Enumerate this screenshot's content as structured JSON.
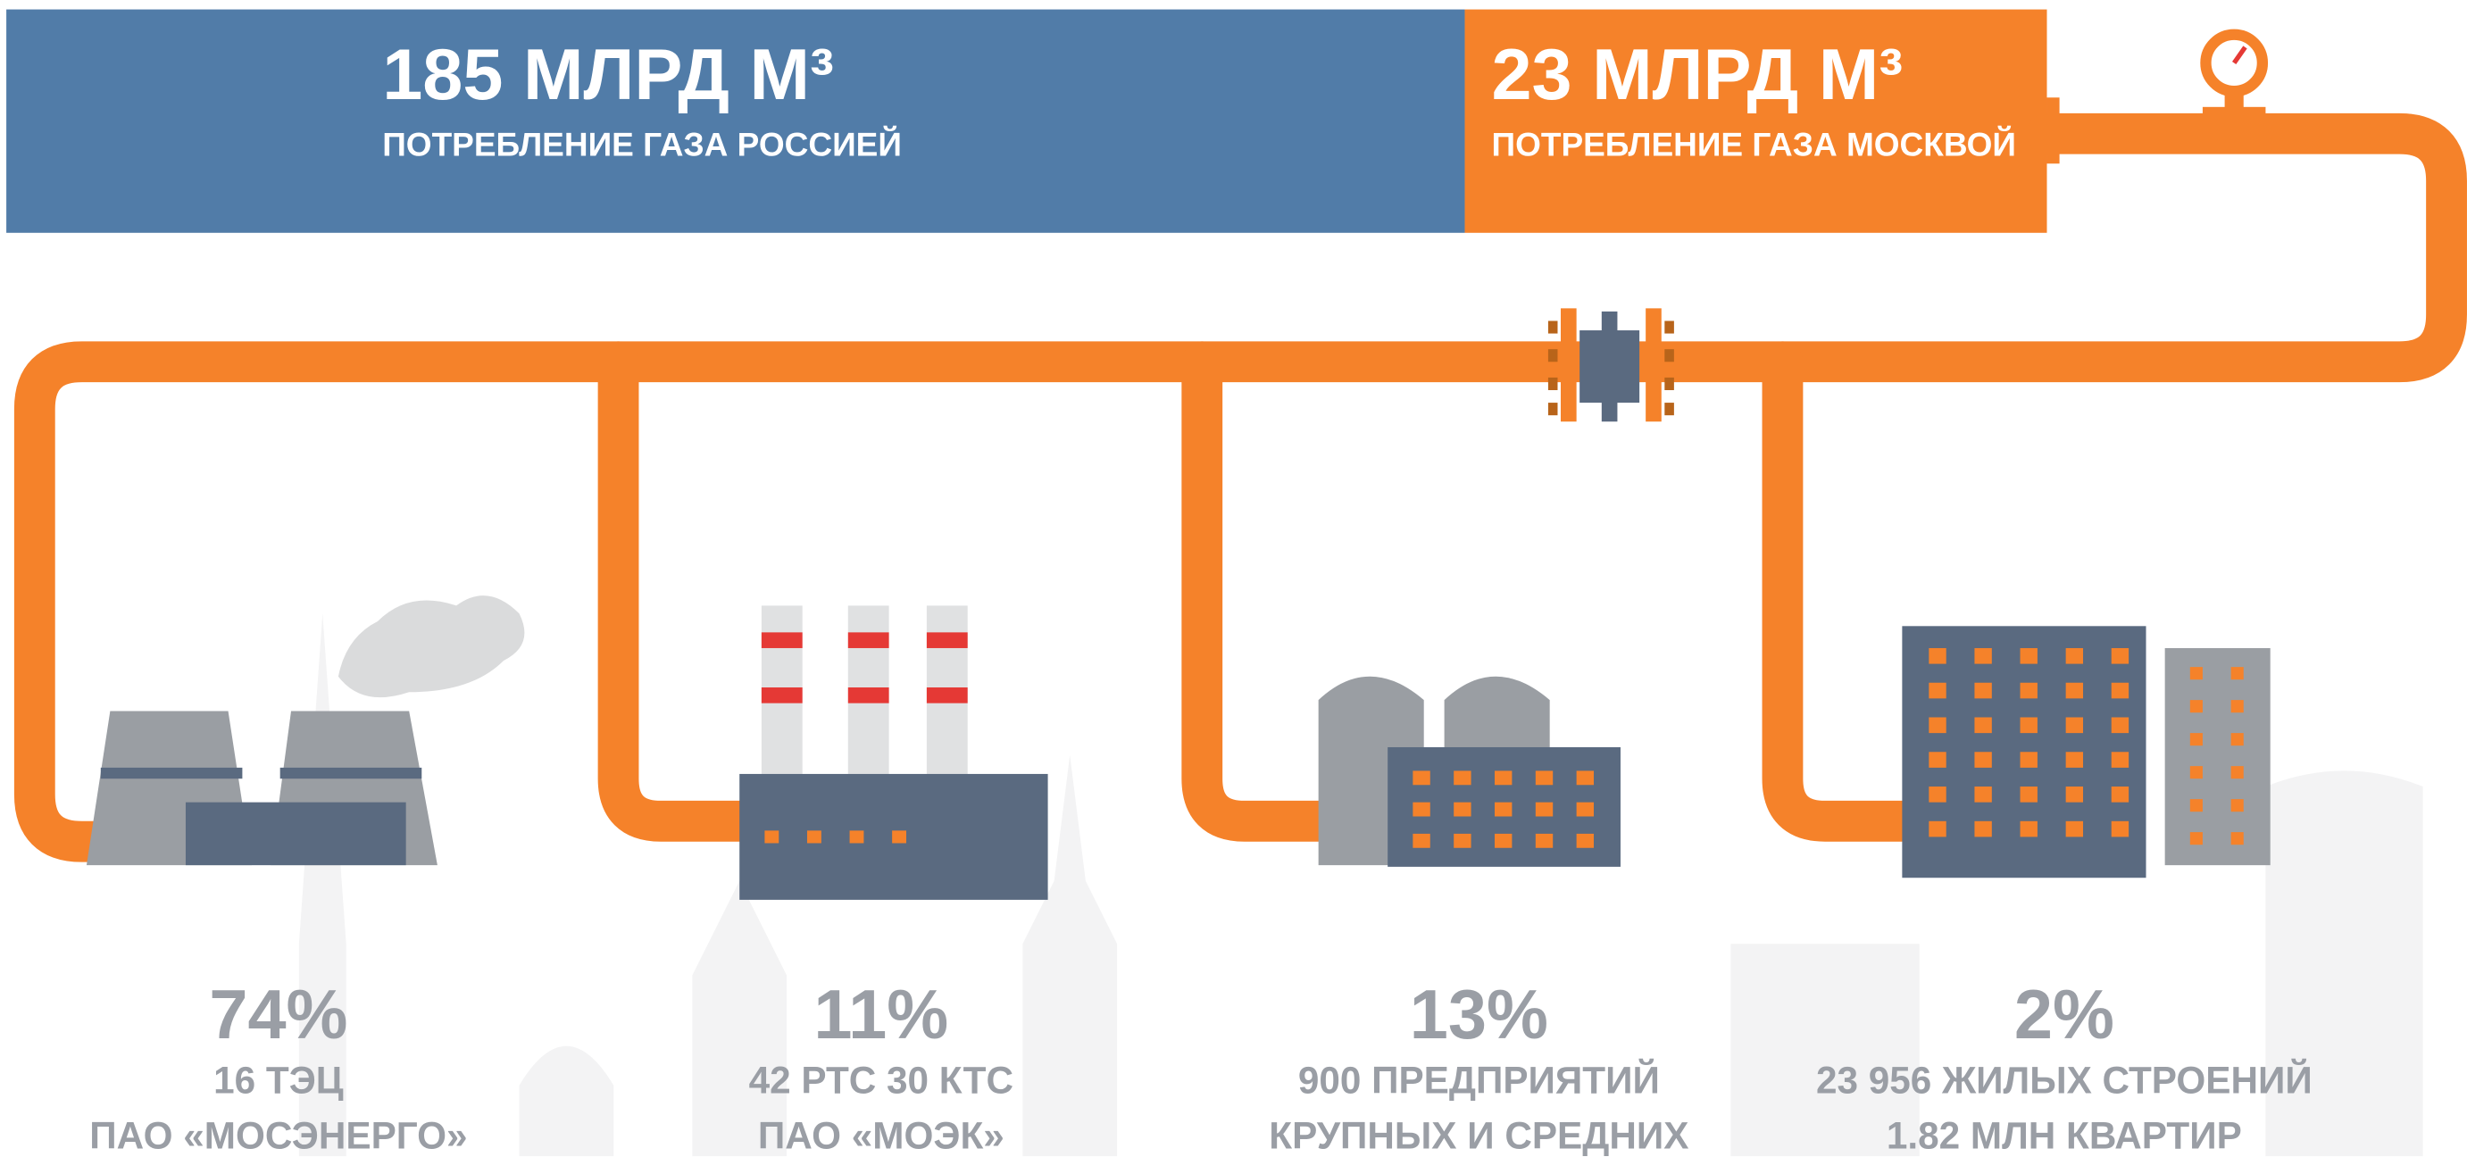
{
  "header": {
    "russia": {
      "amount": "185 МЛРД М³",
      "caption": "ПОТРЕБЛЕНИЕ ГАЗА РОССИЕЙ"
    },
    "moscow": {
      "amount": "23 МЛРД М³",
      "caption": "ПОТРЕБЛЕНИЕ ГАЗА МОСКВОЙ"
    }
  },
  "items": [
    {
      "percent": "74%",
      "line1": "16 ТЭЦ",
      "line2": "ПАО «МОСЭНЕРГО»"
    },
    {
      "percent": "11%",
      "line1": "42 РТС 30 КТС",
      "line2": "ПАО «МОЭК»"
    },
    {
      "percent": "13%",
      "line1": "900 ПРЕДПРИЯТИЙ",
      "line2": "КРУПНЫХ И СРЕДНИХ"
    },
    {
      "percent": "2%",
      "line1": "23 956 ЖИЛЫХ СТРОЕНИЙ",
      "line2": "1.82 МЛН КВАРТИР"
    }
  ]
}
